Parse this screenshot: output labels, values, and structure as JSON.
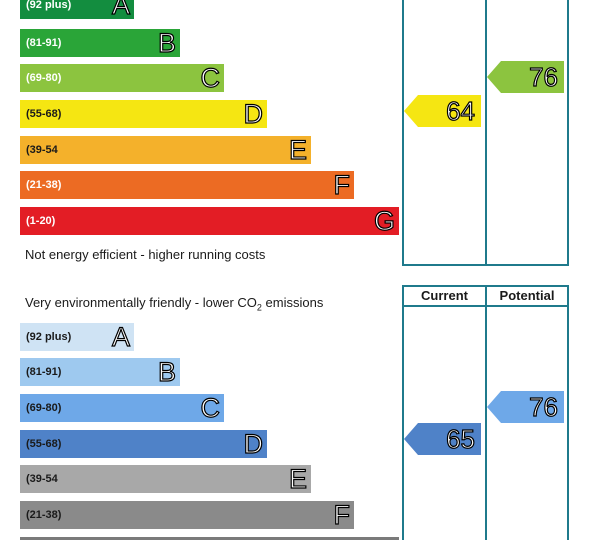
{
  "energy_chart": {
    "bottom_caption": "Not energy efficient - higher running costs",
    "current": "64",
    "potential": "76"
  },
  "env_chart": {
    "top_caption_pre": "Very environmentally friendly - lower CO",
    "top_caption_sub": "2",
    "top_caption_post": " emissions",
    "col_current": "Current",
    "col_potential": "Potential",
    "current": "65",
    "potential": "76"
  },
  "colors": {
    "energy": [
      "#138d3f",
      "#2aa538",
      "#8cc43f",
      "#f5e612",
      "#f4b12b",
      "#ec6b23",
      "#e31d25"
    ],
    "energy_current": "#f5e612",
    "energy_potential": "#8cc43f",
    "env": [
      "#cfe3f4",
      "#9ec9ef",
      "#6ea8e8",
      "#4f82c8",
      "#a8a8a8",
      "#8a8a8a",
      "#7a7a7a"
    ],
    "env_current": "#4f82c8",
    "env_potential": "#6ea8e8",
    "frame": "#1f7a8c"
  },
  "chart_data": [
    {
      "type": "bar",
      "categories": [
        "A",
        "B",
        "C",
        "D",
        "E",
        "F",
        "G"
      ],
      "ranges": [
        "(92 plus)",
        "(81-91)",
        "(69-80)",
        "(55-68)",
        "(39-54",
        "(21-38)",
        "(1-20)"
      ],
      "current": 64,
      "potential": 76
    },
    {
      "type": "bar",
      "categories": [
        "A",
        "B",
        "C",
        "D",
        "E",
        "F"
      ],
      "ranges": [
        "(92 plus)",
        "(81-91)",
        "(69-80)",
        "(55-68)",
        "(39-54",
        "(21-38)"
      ],
      "current": 65,
      "potential": 76
    }
  ]
}
